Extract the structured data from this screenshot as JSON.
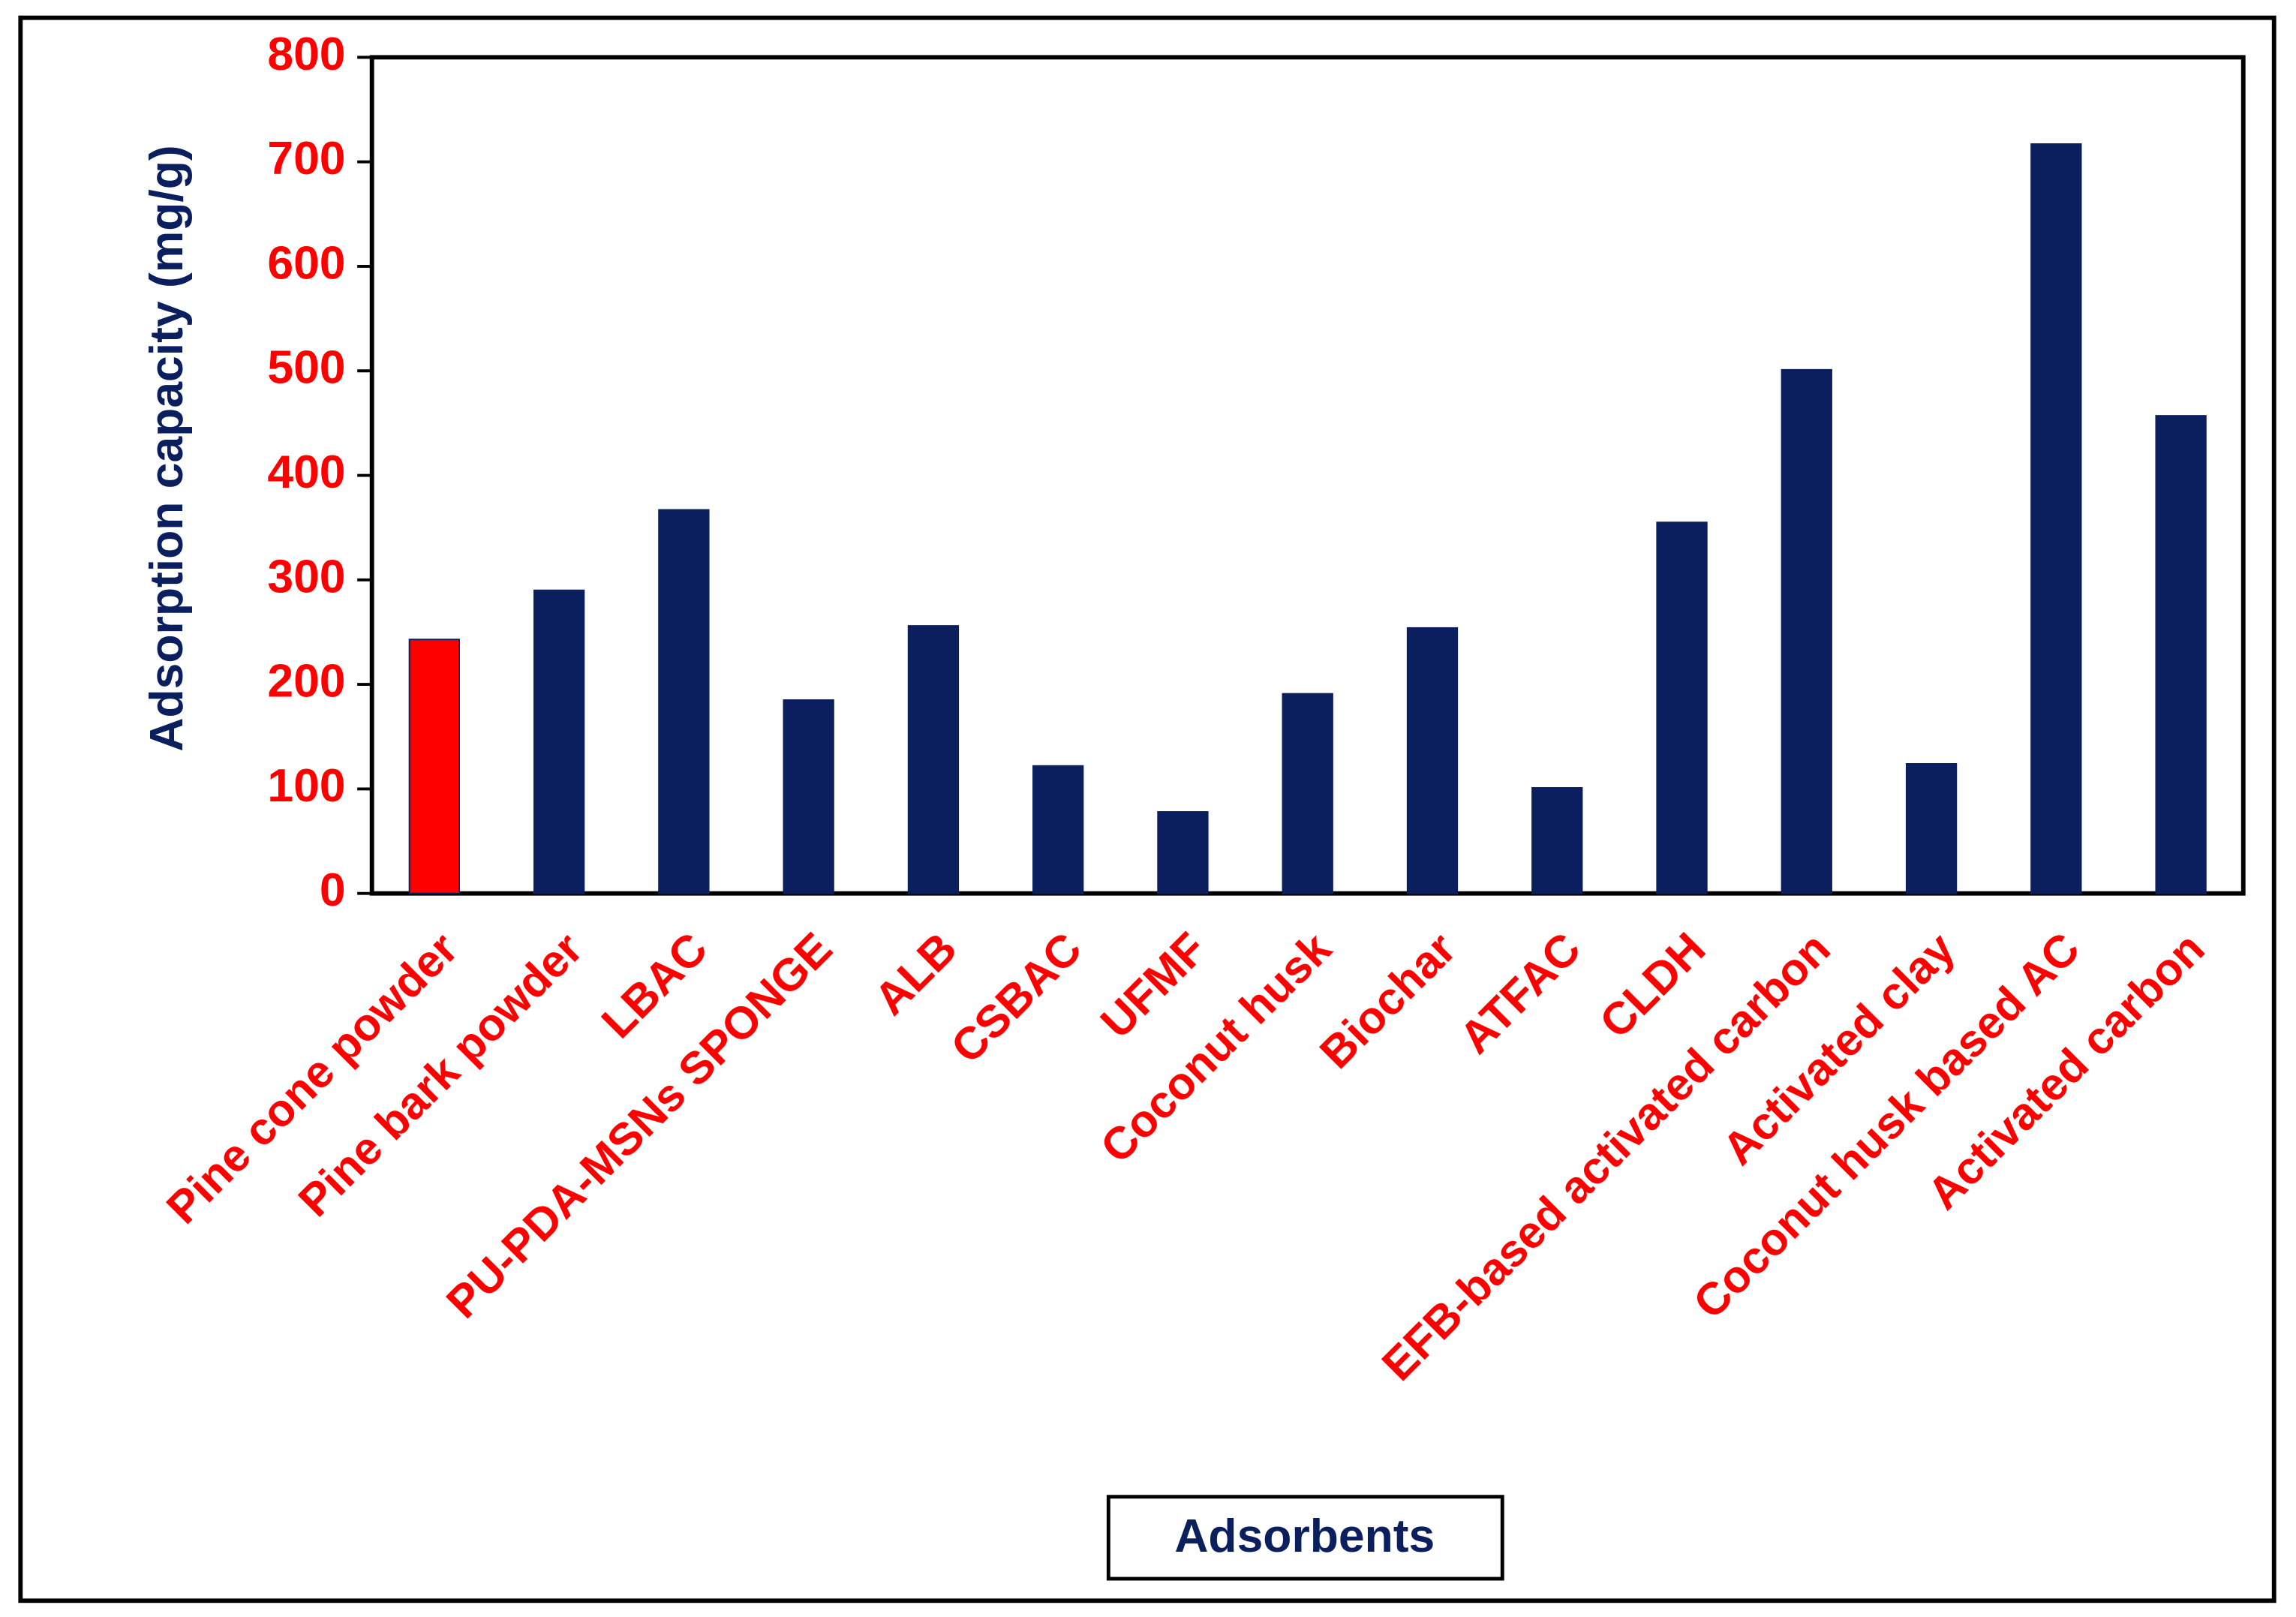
{
  "chart_data": {
    "type": "bar",
    "x_label": "Adsorbents",
    "y_label": "Adsorption capacity (mg/g)",
    "categories": [
      "Pine cone powder",
      "Pine bark powder",
      "LBAC",
      "PU-PDA-MSNs SPONGE",
      "ALB",
      "CSBAC",
      "UFMF",
      "Coconut husk",
      "Biochar",
      "ATFAC",
      "CLDH",
      "EFB-based activated carbon",
      "Activated clay",
      "Coconut husk based AC",
      "Activated carbon"
    ],
    "values": [
      243,
      290,
      367,
      185,
      256,
      122,
      78,
      191,
      254,
      101,
      355,
      501,
      124,
      717,
      457
    ],
    "colors": [
      "#ff0000",
      "#0b1f5e",
      "#0b1f5e",
      "#0b1f5e",
      "#0b1f5e",
      "#0b1f5e",
      "#0b1f5e",
      "#0b1f5e",
      "#0b1f5e",
      "#0b1f5e",
      "#0b1f5e",
      "#0b1f5e",
      "#0b1f5e",
      "#0b1f5e",
      "#0b1f5e"
    ],
    "ylim": [
      0,
      800
    ],
    "yticks": [
      0,
      100,
      200,
      300,
      400,
      500,
      600,
      700,
      800
    ],
    "grid": false
  }
}
